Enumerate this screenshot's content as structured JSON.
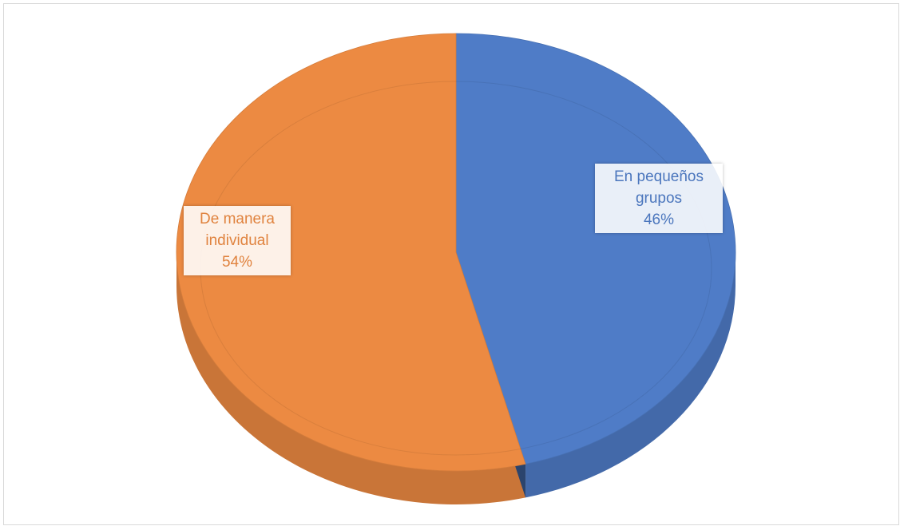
{
  "chart_data": {
    "type": "pie",
    "categories": [
      "En pequeños grupos",
      "De manera individual"
    ],
    "values": [
      46,
      54
    ],
    "value_labels": [
      "46%",
      "54%"
    ],
    "colors": [
      "#4f7cc7",
      "#ec8a42"
    ],
    "three_d": true
  }
}
